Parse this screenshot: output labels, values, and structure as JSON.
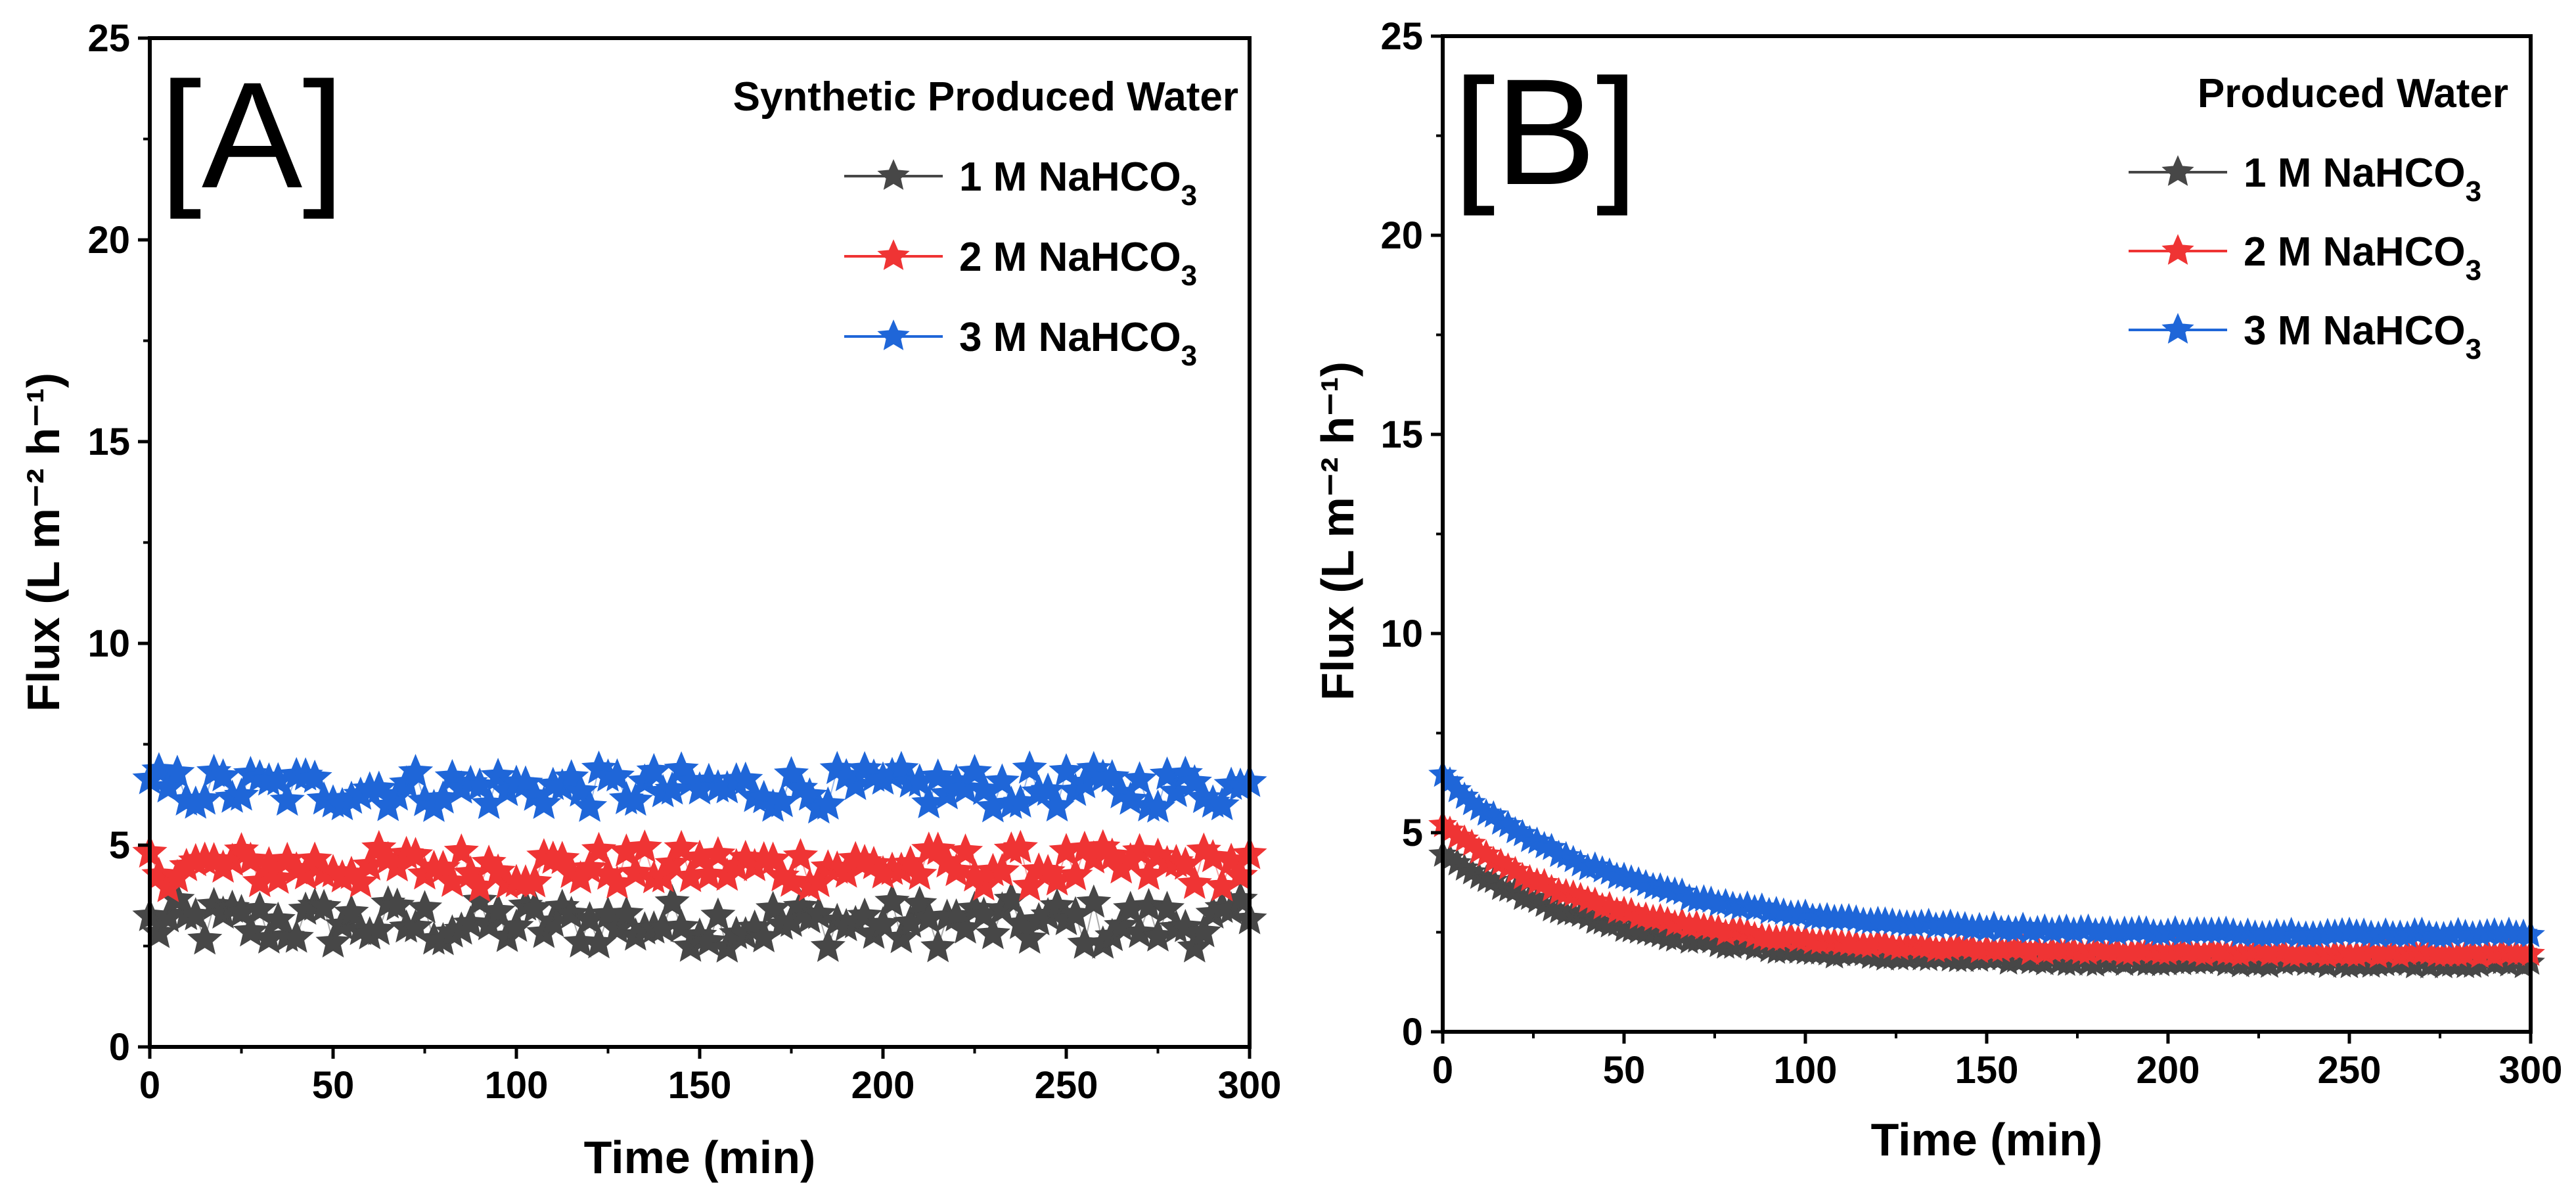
{
  "chart_data": [
    {
      "type": "scatter",
      "panel_label": "[A]",
      "legend_title": "Synthetic Produced Water",
      "xlabel": "Time (min)",
      "ylabel": "Flux (L m⁻² h⁻¹)",
      "xlim": [
        0,
        300
      ],
      "ylim": [
        0,
        25
      ],
      "xticks": [
        0,
        50,
        100,
        150,
        200,
        250,
        300
      ],
      "yticks": [
        0,
        5,
        10,
        15,
        20,
        25
      ],
      "legend_position": "top-right",
      "grid": false,
      "sample_interval_min": 2.5,
      "series": [
        {
          "name": "1 M NaHCO3",
          "label_main": "1 M NaHCO",
          "label_sub": "3",
          "color": "#474747",
          "mean": 3.05,
          "jitter": 0.6
        },
        {
          "name": "2 M NaHCO3",
          "label_main": "2 M NaHCO",
          "label_sub": "3",
          "color": "#ef3434",
          "mean": 4.45,
          "jitter": 0.5
        },
        {
          "name": "3 M NaHCO3",
          "label_main": "3 M NaHCO",
          "label_sub": "3",
          "color": "#1f66d8",
          "mean": 6.4,
          "jitter": 0.5
        }
      ]
    },
    {
      "type": "scatter",
      "panel_label": "[B]",
      "legend_title": "Produced Water",
      "xlabel": "Time (min)",
      "ylabel": "Flux (L m⁻² h⁻¹)",
      "xlim": [
        0,
        300
      ],
      "ylim": [
        0,
        25
      ],
      "xticks": [
        0,
        50,
        100,
        150,
        200,
        250,
        300
      ],
      "yticks": [
        0,
        5,
        10,
        15,
        20,
        25
      ],
      "legend_position": "top-right",
      "grid": false,
      "sample_interval_min": 2,
      "series": [
        {
          "name": "1 M NaHCO3",
          "label_main": "1 M NaHCO",
          "label_sub": "3",
          "color": "#474747",
          "start": 4.5,
          "end": 1.7,
          "tau": 45
        },
        {
          "name": "2 M NaHCO3",
          "label_main": "2 M NaHCO",
          "label_sub": "3",
          "color": "#ef3434",
          "start": 5.2,
          "end": 1.95,
          "tau": 45
        },
        {
          "name": "3 M NaHCO3",
          "label_main": "3 M NaHCO",
          "label_sub": "3",
          "color": "#1f66d8",
          "start": 6.4,
          "end": 2.45,
          "tau": 48
        }
      ]
    }
  ]
}
